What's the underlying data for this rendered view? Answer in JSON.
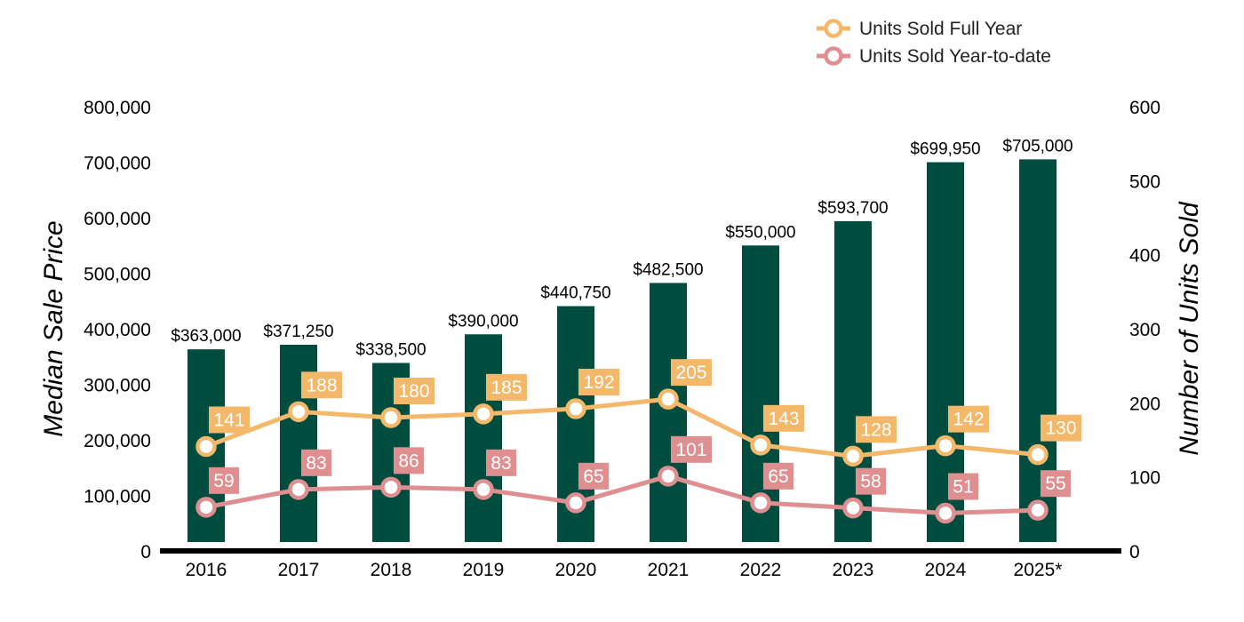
{
  "chart_data": {
    "type": "bar",
    "categories": [
      "2016",
      "2017",
      "2018",
      "2019",
      "2020",
      "2021",
      "2022",
      "2023",
      "2024",
      "2025*"
    ],
    "bars": {
      "axis": "left",
      "values": [
        363000,
        371250,
        338500,
        390000,
        440750,
        482500,
        550000,
        593700,
        699950,
        705000
      ],
      "labels": [
        "$363,000",
        "$371,250",
        "$338,500",
        "$390,000",
        "$440,750",
        "$482,500",
        "$550,000",
        "$593,700",
        "$699,950",
        "$705,000"
      ],
      "color": "#004d40"
    },
    "series": [
      {
        "name": "Units Sold Full Year",
        "type": "line",
        "axis": "right",
        "values": [
          141,
          188,
          180,
          185,
          192,
          205,
          143,
          128,
          142,
          130
        ],
        "color": "#f4b86a"
      },
      {
        "name": "Units Sold Year-to-date",
        "type": "line",
        "axis": "right",
        "values": [
          59,
          83,
          86,
          83,
          65,
          101,
          65,
          58,
          51,
          55
        ],
        "color": "#e08f91"
      }
    ],
    "ylabel": "Median Sale Price",
    "y2label": "Number of Units Sold",
    "ylim": [
      0,
      800000
    ],
    "y2lim": [
      0,
      600
    ],
    "yticks": [
      "0",
      "100,000",
      "200,000",
      "300,000",
      "400,000",
      "500,000",
      "600,000",
      "700,000",
      "800,000"
    ],
    "y2ticks": [
      "0",
      "100",
      "200",
      "300",
      "400",
      "500",
      "600"
    ],
    "legend_position": "top-right",
    "grid": false
  }
}
